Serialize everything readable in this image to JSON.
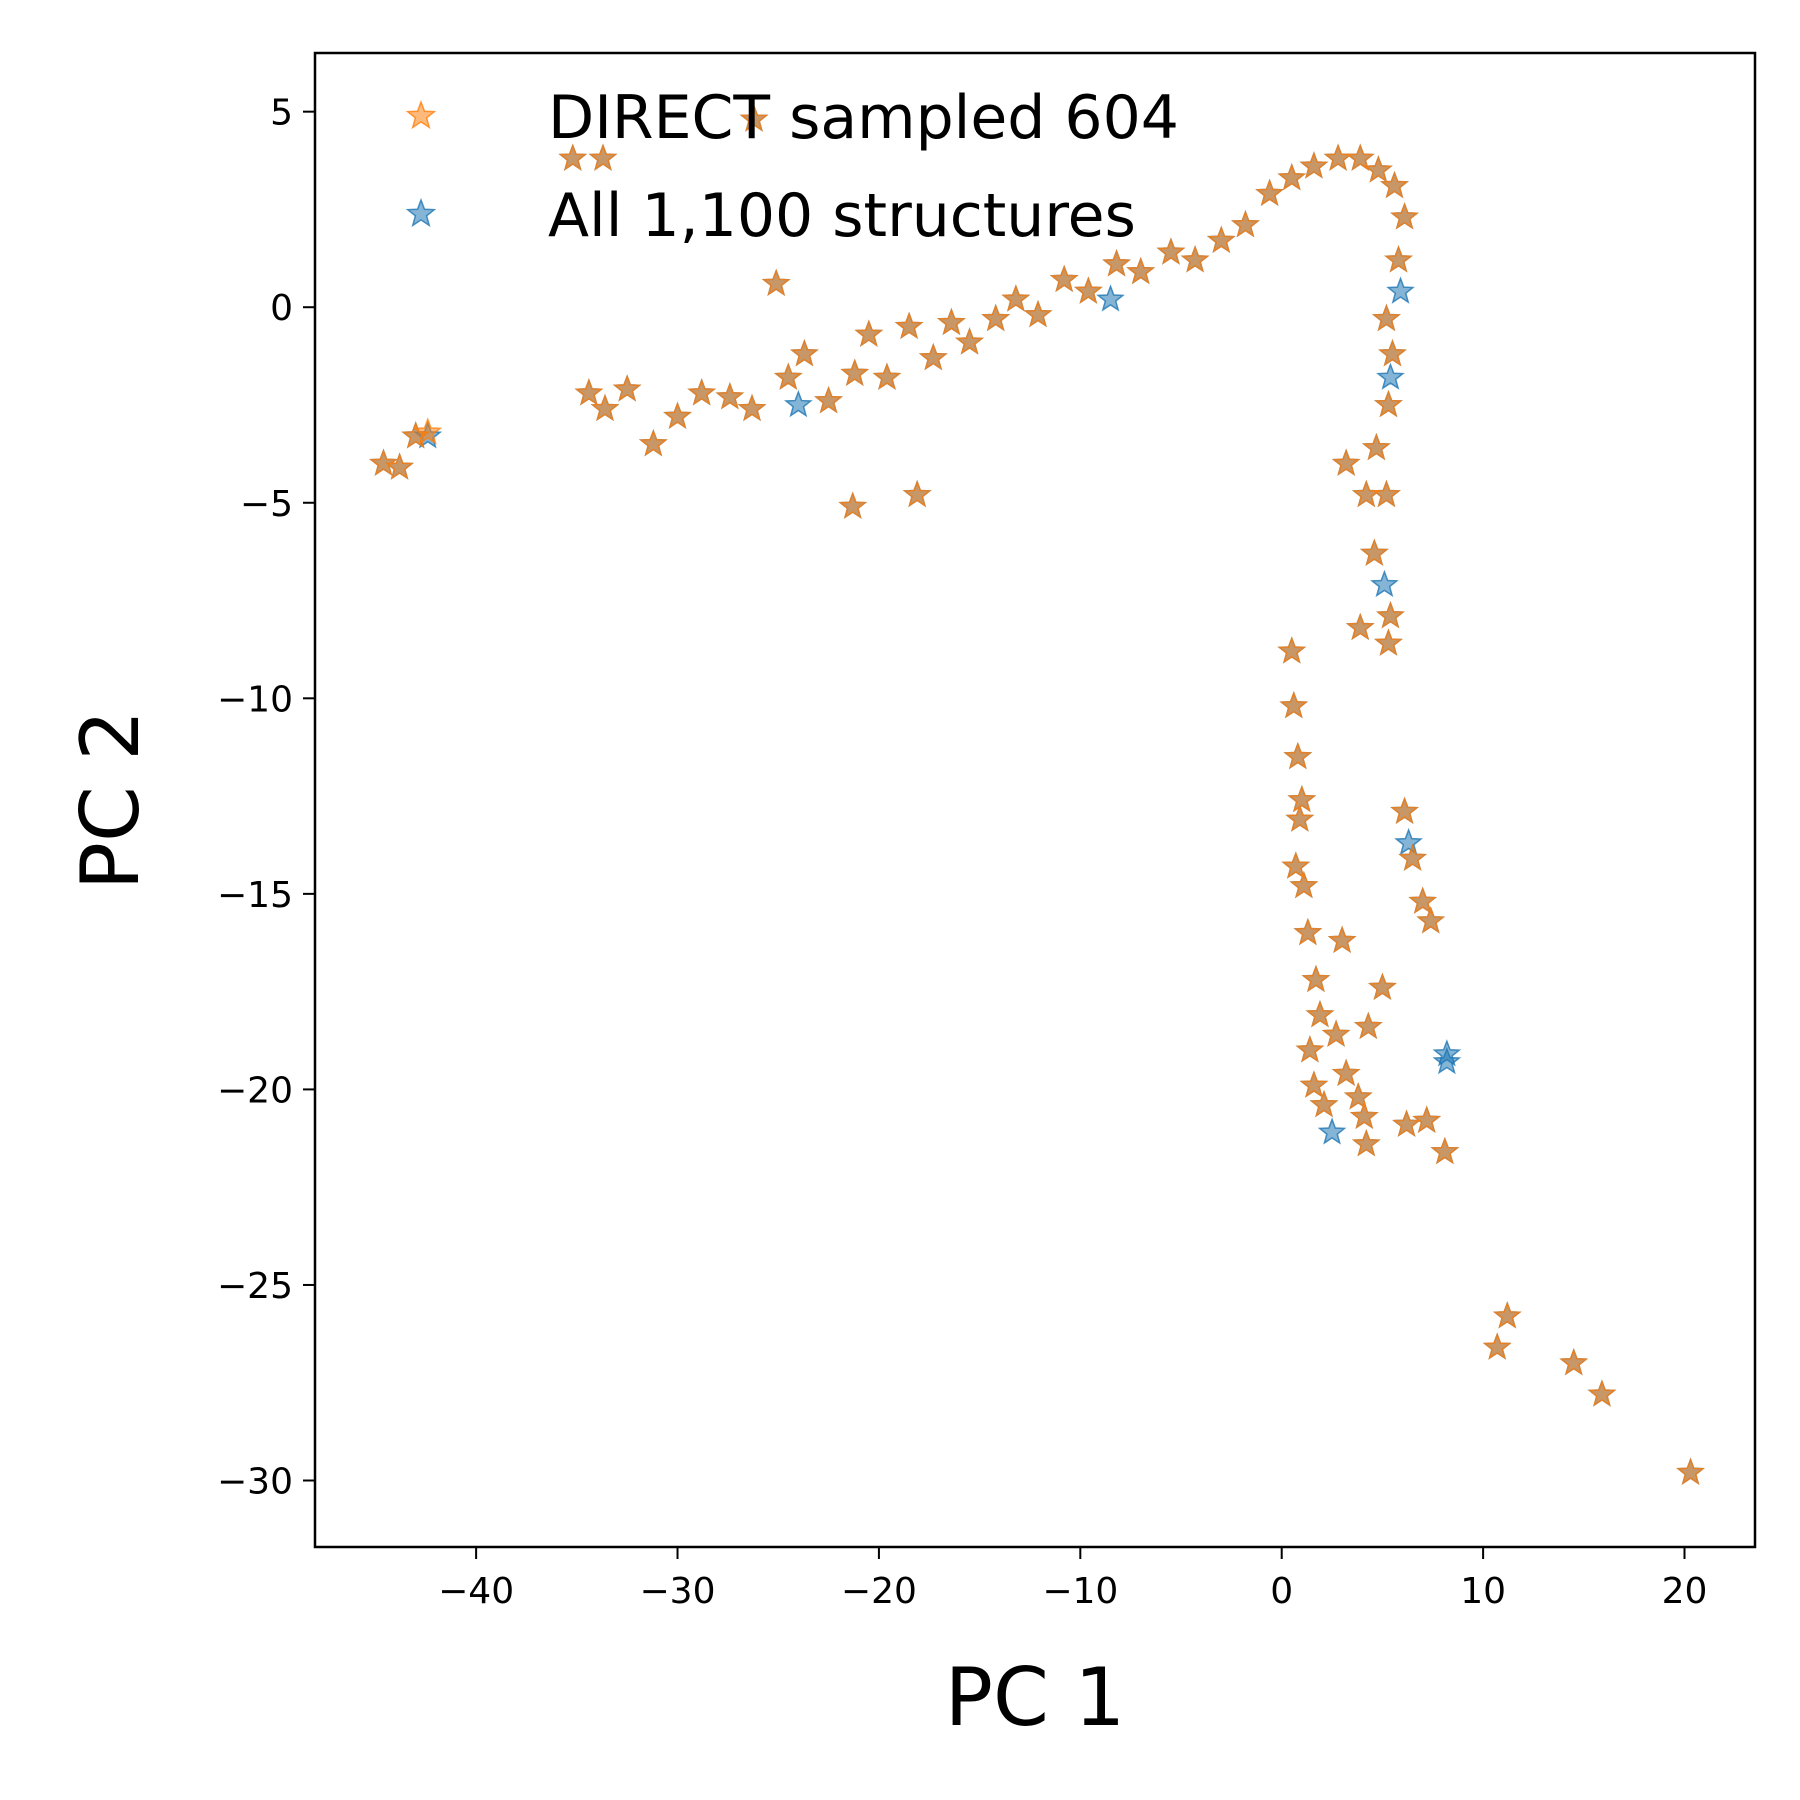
{
  "chart_data": {
    "type": "scatter",
    "xlabel": "PC 1",
    "ylabel": "PC 2",
    "xlim": [
      -48,
      23.5
    ],
    "ylim": [
      -31.7,
      6.5
    ],
    "xticks": [
      -40,
      -30,
      -20,
      -10,
      0,
      10,
      20
    ],
    "yticks": [
      5,
      0,
      -5,
      -10,
      -15,
      -20,
      -25,
      -30
    ],
    "xtick_labels": [
      "−40",
      "−30",
      "−20",
      "−10",
      "0",
      "10",
      "20"
    ],
    "ytick_labels": [
      "5",
      "0",
      "−5",
      "−10",
      "−15",
      "−20",
      "−25",
      "−30"
    ],
    "grid": false,
    "legend_position": "top-left",
    "marker": "star",
    "series": [
      {
        "name": "All 1,100 structures",
        "color": "#1f77b4",
        "points": [
          [
            -44.6,
            -4.0
          ],
          [
            -43.8,
            -4.1
          ],
          [
            -43.0,
            -3.3
          ],
          [
            -42.4,
            -3.3
          ],
          [
            -35.2,
            3.8
          ],
          [
            -33.7,
            3.8
          ],
          [
            -26.2,
            4.8
          ],
          [
            -25.1,
            0.6
          ],
          [
            -34.4,
            -2.2
          ],
          [
            -33.6,
            -2.6
          ],
          [
            -32.5,
            -2.1
          ],
          [
            -31.2,
            -3.5
          ],
          [
            -30.0,
            -2.8
          ],
          [
            -28.8,
            -2.2
          ],
          [
            -27.4,
            -2.3
          ],
          [
            -26.3,
            -2.6
          ],
          [
            -24.5,
            -1.8
          ],
          [
            -23.7,
            -1.2
          ],
          [
            -22.5,
            -2.4
          ],
          [
            -21.2,
            -1.7
          ],
          [
            -20.5,
            -0.7
          ],
          [
            -19.6,
            -1.8
          ],
          [
            -18.5,
            -0.5
          ],
          [
            -17.3,
            -1.3
          ],
          [
            -16.4,
            -0.4
          ],
          [
            -15.5,
            -0.9
          ],
          [
            -14.2,
            -0.3
          ],
          [
            -13.2,
            0.2
          ],
          [
            -12.1,
            -0.2
          ],
          [
            -10.8,
            0.7
          ],
          [
            -9.6,
            0.4
          ],
          [
            -8.2,
            1.1
          ],
          [
            -7.0,
            0.9
          ],
          [
            -5.5,
            1.4
          ],
          [
            -4.3,
            1.2
          ],
          [
            -3.0,
            1.7
          ],
          [
            -1.8,
            2.1
          ],
          [
            -0.6,
            2.9
          ],
          [
            0.5,
            3.3
          ],
          [
            1.6,
            3.6
          ],
          [
            2.8,
            3.8
          ],
          [
            3.9,
            3.8
          ],
          [
            4.8,
            3.5
          ],
          [
            5.6,
            3.1
          ],
          [
            6.1,
            2.3
          ],
          [
            5.8,
            1.2
          ],
          [
            5.2,
            -0.3
          ],
          [
            5.5,
            -1.2
          ],
          [
            5.3,
            -2.5
          ],
          [
            4.7,
            -3.6
          ],
          [
            -24.0,
            -2.5
          ],
          [
            -8.5,
            0.2
          ],
          [
            5.4,
            -1.8
          ],
          [
            5.9,
            0.4
          ],
          [
            -21.3,
            -5.1
          ],
          [
            -18.1,
            -4.8
          ],
          [
            4.2,
            -4.8
          ],
          [
            5.2,
            -4.8
          ],
          [
            3.2,
            -4.0
          ],
          [
            4.6,
            -6.3
          ],
          [
            5.1,
            -7.1
          ],
          [
            5.4,
            -7.9
          ],
          [
            3.9,
            -8.2
          ],
          [
            5.3,
            -8.6
          ],
          [
            0.5,
            -8.8
          ],
          [
            0.6,
            -10.2
          ],
          [
            0.8,
            -11.5
          ],
          [
            1.0,
            -12.6
          ],
          [
            0.9,
            -13.1
          ],
          [
            0.7,
            -14.3
          ],
          [
            1.1,
            -14.8
          ],
          [
            1.3,
            -16.0
          ],
          [
            1.7,
            -17.2
          ],
          [
            1.9,
            -18.1
          ],
          [
            1.4,
            -19.0
          ],
          [
            1.6,
            -19.9
          ],
          [
            2.1,
            -20.4
          ],
          [
            2.7,
            -18.6
          ],
          [
            3.2,
            -19.6
          ],
          [
            3.8,
            -20.2
          ],
          [
            2.5,
            -21.1
          ],
          [
            4.2,
            -21.4
          ],
          [
            4.1,
            -20.7
          ],
          [
            4.3,
            -18.4
          ],
          [
            3.0,
            -16.2
          ],
          [
            5.0,
            -17.4
          ],
          [
            6.1,
            -12.9
          ],
          [
            6.3,
            -13.7
          ],
          [
            6.5,
            -14.1
          ],
          [
            7.0,
            -15.2
          ],
          [
            7.4,
            -15.7
          ],
          [
            8.2,
            -19.1
          ],
          [
            8.2,
            -19.3
          ],
          [
            8.1,
            -21.6
          ],
          [
            7.2,
            -20.8
          ],
          [
            6.2,
            -20.9
          ],
          [
            10.7,
            -26.6
          ],
          [
            11.2,
            -25.8
          ],
          [
            14.5,
            -27.0
          ],
          [
            15.9,
            -27.8
          ],
          [
            20.3,
            -29.8
          ]
        ]
      },
      {
        "name": "DIRECT sampled 604",
        "color": "#ff7f0e",
        "points": [
          [
            -44.6,
            -4.0
          ],
          [
            -43.8,
            -4.1
          ],
          [
            -43.0,
            -3.3
          ],
          [
            -42.4,
            -3.2
          ],
          [
            -35.2,
            3.8
          ],
          [
            -33.7,
            3.8
          ],
          [
            -26.2,
            4.8
          ],
          [
            -25.1,
            0.6
          ],
          [
            -34.4,
            -2.2
          ],
          [
            -33.6,
            -2.6
          ],
          [
            -32.5,
            -2.1
          ],
          [
            -31.2,
            -3.5
          ],
          [
            -30.0,
            -2.8
          ],
          [
            -28.8,
            -2.2
          ],
          [
            -27.4,
            -2.3
          ],
          [
            -26.3,
            -2.6
          ],
          [
            -24.5,
            -1.8
          ],
          [
            -23.7,
            -1.2
          ],
          [
            -22.5,
            -2.4
          ],
          [
            -21.2,
            -1.7
          ],
          [
            -20.5,
            -0.7
          ],
          [
            -19.6,
            -1.8
          ],
          [
            -18.5,
            -0.5
          ],
          [
            -17.3,
            -1.3
          ],
          [
            -16.4,
            -0.4
          ],
          [
            -15.5,
            -0.9
          ],
          [
            -14.2,
            -0.3
          ],
          [
            -13.2,
            0.2
          ],
          [
            -12.1,
            -0.2
          ],
          [
            -10.8,
            0.7
          ],
          [
            -9.6,
            0.4
          ],
          [
            -8.2,
            1.1
          ],
          [
            -7.0,
            0.9
          ],
          [
            -5.5,
            1.4
          ],
          [
            -4.3,
            1.2
          ],
          [
            -3.0,
            1.7
          ],
          [
            -1.8,
            2.1
          ],
          [
            -0.6,
            2.9
          ],
          [
            0.5,
            3.3
          ],
          [
            1.6,
            3.6
          ],
          [
            2.8,
            3.8
          ],
          [
            3.9,
            3.8
          ],
          [
            4.8,
            3.5
          ],
          [
            5.6,
            3.1
          ],
          [
            6.1,
            2.3
          ],
          [
            5.8,
            1.2
          ],
          [
            5.2,
            -0.3
          ],
          [
            5.5,
            -1.2
          ],
          [
            5.3,
            -2.5
          ],
          [
            4.7,
            -3.6
          ],
          [
            -21.3,
            -5.1
          ],
          [
            -18.1,
            -4.8
          ],
          [
            4.2,
            -4.8
          ],
          [
            5.2,
            -4.8
          ],
          [
            3.2,
            -4.0
          ],
          [
            4.6,
            -6.3
          ],
          [
            5.4,
            -7.9
          ],
          [
            3.9,
            -8.2
          ],
          [
            5.3,
            -8.6
          ],
          [
            0.5,
            -8.8
          ],
          [
            0.6,
            -10.2
          ],
          [
            0.8,
            -11.5
          ],
          [
            1.0,
            -12.6
          ],
          [
            0.9,
            -13.1
          ],
          [
            0.7,
            -14.3
          ],
          [
            1.1,
            -14.8
          ],
          [
            1.3,
            -16.0
          ],
          [
            1.7,
            -17.2
          ],
          [
            1.9,
            -18.1
          ],
          [
            1.4,
            -19.0
          ],
          [
            1.6,
            -19.9
          ],
          [
            2.1,
            -20.4
          ],
          [
            2.7,
            -18.6
          ],
          [
            3.2,
            -19.6
          ],
          [
            3.8,
            -20.2
          ],
          [
            4.2,
            -21.4
          ],
          [
            4.1,
            -20.7
          ],
          [
            4.3,
            -18.4
          ],
          [
            3.0,
            -16.2
          ],
          [
            5.0,
            -17.4
          ],
          [
            6.1,
            -12.9
          ],
          [
            6.5,
            -14.1
          ],
          [
            7.0,
            -15.2
          ],
          [
            7.4,
            -15.7
          ],
          [
            8.1,
            -21.6
          ],
          [
            7.2,
            -20.8
          ],
          [
            6.2,
            -20.9
          ],
          [
            10.7,
            -26.6
          ],
          [
            11.2,
            -25.8
          ],
          [
            14.5,
            -27.0
          ],
          [
            15.9,
            -27.8
          ],
          [
            20.3,
            -29.8
          ]
        ]
      }
    ],
    "legend": [
      {
        "label": "DIRECT sampled 604",
        "color": "#ff7f0e"
      },
      {
        "label": "All 1,100 structures",
        "color": "#1f77b4"
      }
    ]
  }
}
